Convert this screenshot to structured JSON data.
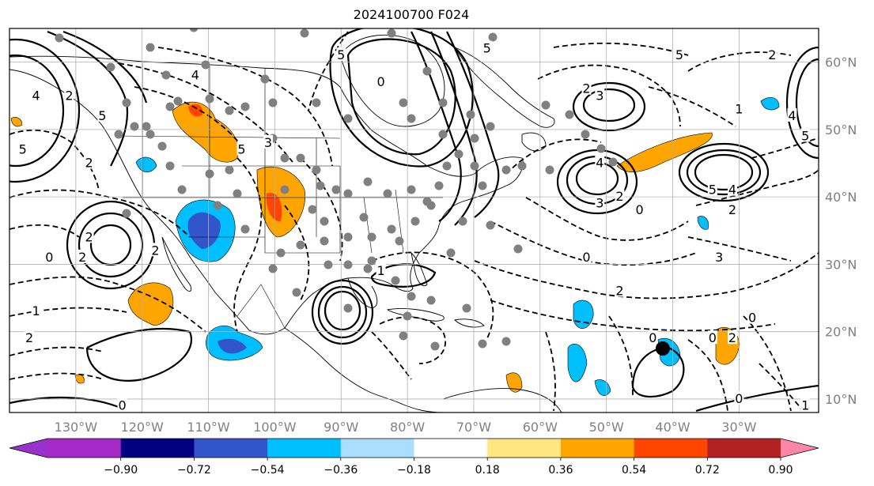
{
  "title": "2024100700 F024",
  "map": {
    "lon_range": [
      -140,
      -18
    ],
    "lat_range": [
      8,
      65
    ],
    "lon_ticks": [
      {
        "value": -130,
        "label": "130°W"
      },
      {
        "value": -120,
        "label": "120°W"
      },
      {
        "value": -110,
        "label": "110°W"
      },
      {
        "value": -100,
        "label": "100°W"
      },
      {
        "value": -90,
        "label": "90°W"
      },
      {
        "value": -80,
        "label": "80°W"
      },
      {
        "value": -70,
        "label": "70°W"
      },
      {
        "value": -60,
        "label": "60°W"
      },
      {
        "value": -50,
        "label": "50°W"
      },
      {
        "value": -40,
        "label": "40°W"
      },
      {
        "value": -30,
        "label": "30°W"
      }
    ],
    "lat_ticks": [
      {
        "value": 60,
        "label": "60°N"
      },
      {
        "value": 50,
        "label": "50°N"
      },
      {
        "value": 40,
        "label": "40°N"
      },
      {
        "value": 30,
        "label": "30°N"
      },
      {
        "value": 20,
        "label": "20°N"
      },
      {
        "value": 10,
        "label": "10°N"
      }
    ],
    "grid": true,
    "marker": {
      "lon": -41.5,
      "lat": 17.5,
      "color": "#000000"
    }
  },
  "contour_labels": [
    {
      "text": "5",
      "lon": -105,
      "lat": 47
    },
    {
      "text": "4",
      "lon": -112,
      "lat": 58
    },
    {
      "text": "5",
      "lon": -126,
      "lat": 52
    },
    {
      "text": "2",
      "lon": -131,
      "lat": 55
    },
    {
      "text": "4",
      "lon": -136,
      "lat": 55
    },
    {
      "text": "5",
      "lon": -138,
      "lat": 47
    },
    {
      "text": "2",
      "lon": -128,
      "lat": 45
    },
    {
      "text": "2",
      "lon": -128,
      "lat": 34
    },
    {
      "text": "0",
      "lon": -134,
      "lat": 31
    },
    {
      "text": "2",
      "lon": -118,
      "lat": 32
    },
    {
      "text": "1",
      "lon": -136,
      "lat": 23
    },
    {
      "text": "2",
      "lon": -137,
      "lat": 19
    },
    {
      "text": "0",
      "lon": -123,
      "lat": 9
    },
    {
      "text": "3",
      "lon": -101,
      "lat": 48
    },
    {
      "text": "5",
      "lon": -90,
      "lat": 61
    },
    {
      "text": "0",
      "lon": -84,
      "lat": 57
    },
    {
      "text": "5",
      "lon": -68,
      "lat": 62
    },
    {
      "text": "2",
      "lon": -53,
      "lat": 56
    },
    {
      "text": "3",
      "lon": -51,
      "lat": 55
    },
    {
      "text": "4",
      "lon": -51,
      "lat": 45
    },
    {
      "text": "2",
      "lon": -48,
      "lat": 40
    },
    {
      "text": "3",
      "lon": -51,
      "lat": 39
    },
    {
      "text": "0",
      "lon": -45,
      "lat": 38
    },
    {
      "text": "5",
      "lon": -34,
      "lat": 41
    },
    {
      "text": "4",
      "lon": -31,
      "lat": 41
    },
    {
      "text": "2",
      "lon": -31,
      "lat": 38
    },
    {
      "text": "5",
      "lon": -39,
      "lat": 61
    },
    {
      "text": "2",
      "lon": -25,
      "lat": 61
    },
    {
      "text": "4",
      "lon": -22,
      "lat": 52
    },
    {
      "text": "5",
      "lon": -20,
      "lat": 49
    },
    {
      "text": "1",
      "lon": -30,
      "lat": 53
    },
    {
      "text": "3",
      "lon": -33,
      "lat": 31
    },
    {
      "text": "0",
      "lon": -53,
      "lat": 31
    },
    {
      "text": "2",
      "lon": -48,
      "lat": 26
    },
    {
      "text": "0",
      "lon": -34,
      "lat": 19
    },
    {
      "text": "2",
      "lon": -31,
      "lat": 19
    },
    {
      "text": "0",
      "lon": -28,
      "lat": 22
    },
    {
      "text": "0",
      "lon": -30,
      "lat": 10
    },
    {
      "text": "1",
      "lon": -20,
      "lat": 9
    },
    {
      "text": "0",
      "lon": -43,
      "lat": 19
    },
    {
      "text": "1",
      "lon": -84,
      "lat": 29
    },
    {
      "text": "2",
      "lon": -129,
      "lat": 31
    }
  ],
  "colorbar": {
    "colors": [
      "#9932cc",
      "#a52ac8",
      "#000080",
      "#3355cc",
      "#00bfff",
      "#aaddff",
      "#ffffff",
      "#ffe680",
      "#ffa500",
      "#ff4500",
      "#b22222",
      "#ff85a8"
    ],
    "tick_labels": [
      "−0.90",
      "−0.72",
      "−0.54",
      "−0.36",
      "−0.18",
      "0.18",
      "0.36",
      "0.54",
      "0.72",
      "0.90"
    ]
  }
}
